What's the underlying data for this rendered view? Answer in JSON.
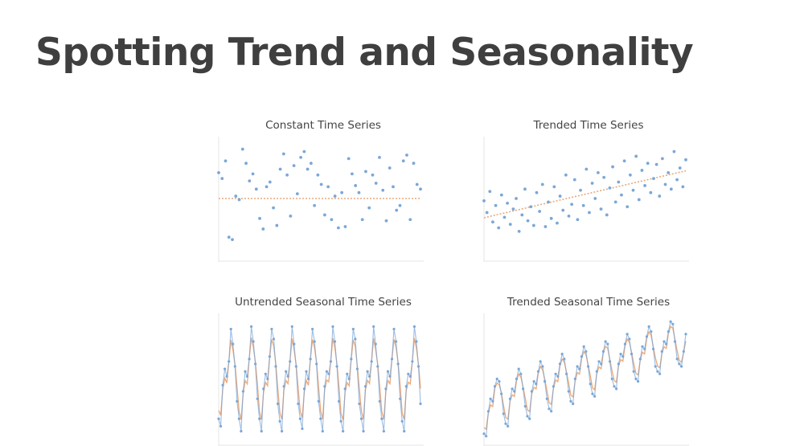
{
  "slide": {
    "title": "Spotting Trend and Seasonality"
  },
  "colors": {
    "points": "#7ba7d7",
    "fit": "#e8a87c",
    "axis": "#e6e6e6",
    "title_text": "#3f3f3f",
    "panel_title_text": "#444444"
  },
  "chart_data": [
    {
      "type": "scatter",
      "title": "Constant Time Series",
      "xlabel": "",
      "ylabel": "",
      "ylim": [
        0,
        100
      ],
      "grid": false,
      "x": [
        1,
        2,
        3,
        4,
        5,
        6,
        7,
        8,
        9,
        10,
        11,
        12,
        13,
        14,
        15,
        16,
        17,
        18,
        19,
        20,
        21,
        22,
        23,
        24,
        25,
        26,
        27,
        28,
        29,
        30,
        31,
        32,
        33,
        34,
        35,
        36,
        37,
        38,
        39,
        40,
        41,
        42,
        43,
        44,
        45,
        46,
        47,
        48,
        49,
        50,
        51,
        52,
        53,
        54,
        55,
        56,
        57,
        58,
        59,
        60
      ],
      "values": [
        72,
        67,
        82,
        17,
        15,
        52,
        49,
        92,
        80,
        65,
        71,
        58,
        33,
        24,
        60,
        64,
        42,
        27,
        75,
        88,
        70,
        35,
        78,
        54,
        85,
        90,
        75,
        80,
        44,
        70,
        62,
        36,
        60,
        32,
        52,
        25,
        55,
        26,
        84,
        71,
        61,
        55,
        32,
        73,
        42,
        70,
        63,
        85,
        57,
        31,
        76,
        60,
        40,
        44,
        82,
        87,
        32,
        80,
        62,
        58
      ],
      "trend": {
        "name": "",
        "intercept": 50,
        "slope": 0
      }
    },
    {
      "type": "scatter",
      "title": "Trended Time Series",
      "xlabel": "",
      "ylabel": "",
      "ylim": [
        0,
        100
      ],
      "grid": false,
      "x": [
        1,
        2,
        3,
        4,
        5,
        6,
        7,
        8,
        9,
        10,
        11,
        12,
        13,
        14,
        15,
        16,
        17,
        18,
        19,
        20,
        21,
        22,
        23,
        24,
        25,
        26,
        27,
        28,
        29,
        30,
        31,
        32,
        33,
        34,
        35,
        36,
        37,
        38,
        39,
        40,
        41,
        42,
        43,
        44,
        45,
        46,
        47,
        48,
        49,
        50,
        51,
        52,
        53,
        54,
        55,
        56,
        57,
        58,
        59,
        60,
        61,
        62,
        63,
        64,
        65,
        66,
        67,
        68,
        69,
        70
      ],
      "values": [
        48,
        38,
        56,
        30,
        44,
        25,
        53,
        34,
        46,
        28,
        41,
        50,
        22,
        36,
        58,
        31,
        43,
        27,
        55,
        39,
        62,
        26,
        47,
        33,
        60,
        29,
        52,
        40,
        70,
        35,
        45,
        66,
        32,
        57,
        44,
        75,
        38,
        63,
        50,
        72,
        41,
        68,
        36,
        59,
        77,
        47,
        64,
        53,
        82,
        43,
        70,
        57,
        86,
        49,
        74,
        61,
        80,
        55,
        67,
        79,
        52,
        84,
        62,
        72,
        58,
        90,
        66,
        76,
        60,
        83
      ],
      "trend": {
        "name": "",
        "intercept": 33,
        "slope": 0.58
      }
    },
    {
      "type": "line",
      "title": "Untrended Seasonal Time Series",
      "xlabel": "",
      "ylabel": "",
      "ylim": [
        0,
        100
      ],
      "grid": false,
      "period": 10,
      "series": [
        {
          "name": "",
          "values": [
            18,
            12,
            45,
            58,
            52,
            64,
            90,
            78,
            60,
            32,
            18,
            8,
            40,
            56,
            52,
            66,
            92,
            80,
            62,
            34,
            18,
            8,
            42,
            54,
            50,
            68,
            90,
            82,
            60,
            30,
            16,
            8,
            44,
            56,
            52,
            64,
            92,
            78,
            60,
            30,
            18,
            10,
            42,
            56,
            50,
            66,
            90,
            80,
            62,
            32,
            18,
            8,
            44,
            56,
            54,
            64,
            92,
            80,
            60,
            32,
            16,
            8,
            42,
            54,
            50,
            66,
            90,
            82,
            58,
            30,
            18,
            8,
            44,
            56,
            52,
            64,
            92,
            78,
            60,
            32,
            18,
            8,
            42,
            56,
            52,
            66,
            90,
            80,
            62,
            34,
            16,
            8,
            44,
            54,
            52,
            64,
            92,
            80,
            60,
            30
          ]
        }
      ]
    },
    {
      "type": "line",
      "title": "Trended Seasonal Time Series",
      "xlabel": "",
      "ylabel": "",
      "ylim": [
        0,
        100
      ],
      "grid": false,
      "period": 10,
      "series": [
        {
          "name": "",
          "values": [
            6,
            4,
            24,
            34,
            32,
            44,
            50,
            48,
            38,
            22,
            14,
            12,
            34,
            42,
            40,
            50,
            58,
            54,
            42,
            28,
            20,
            18,
            40,
            48,
            46,
            56,
            64,
            60,
            48,
            34,
            26,
            24,
            44,
            54,
            52,
            62,
            70,
            66,
            54,
            40,
            32,
            30,
            50,
            60,
            58,
            68,
            76,
            72,
            60,
            46,
            38,
            36,
            56,
            64,
            62,
            72,
            80,
            78,
            64,
            50,
            44,
            42,
            62,
            70,
            68,
            78,
            86,
            82,
            70,
            56,
            50,
            48,
            66,
            76,
            74,
            84,
            92,
            88,
            74,
            60,
            56,
            54,
            72,
            80,
            78,
            88,
            96,
            94,
            80,
            66,
            62,
            60,
            72,
            86
          ]
        }
      ]
    }
  ]
}
